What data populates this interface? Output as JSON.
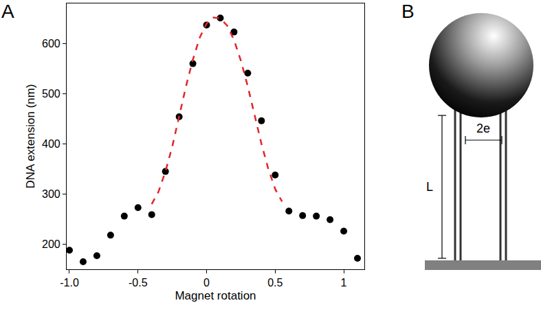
{
  "chart_data": {
    "type": "scatter",
    "x_label": "Magnet rotation",
    "y_label": "DNA extension (nm)",
    "xlim": [
      -1.02,
      1.15
    ],
    "xticks": [
      {
        "value": -1,
        "label": "-1.0"
      },
      -0.5,
      0,
      0.5,
      1
    ],
    "ylim": [
      150,
      680
    ],
    "yticks": [
      200,
      300,
      400,
      500,
      600
    ],
    "grid": false,
    "series": [
      {
        "type": "scatter",
        "color": "#000000",
        "marker": "circle",
        "x": [
          -1.0,
          -0.9,
          -0.8,
          -0.7,
          -0.6,
          -0.5,
          -0.4,
          -0.3,
          -0.2,
          -0.1,
          0,
          0.1,
          0.2,
          0.3,
          0.4,
          0.5,
          0.6,
          0.7,
          0.8,
          0.9,
          1.0,
          1.1
        ],
        "values": [
          188,
          165,
          177,
          218,
          256,
          273,
          259,
          345,
          454,
          560,
          637,
          651,
          623,
          541,
          446,
          338,
          266,
          257,
          256,
          249,
          226,
          172
        ]
      },
      {
        "type": "line",
        "color": "#e0262b",
        "line_style": "dash",
        "x": [
          -0.4,
          -0.35,
          -0.3,
          -0.25,
          -0.2,
          -0.15,
          -0.1,
          -0.05,
          0,
          0.05,
          0.1,
          0.15,
          0.2,
          0.25,
          0.3,
          0.35,
          0.4,
          0.45,
          0.5,
          0.55
        ],
        "values": [
          280,
          305,
          345,
          395,
          455,
          515,
          568,
          612,
          640,
          652,
          650,
          636,
          607,
          566,
          515,
          458,
          400,
          350,
          310,
          285
        ]
      }
    ]
  },
  "panel_labels": [
    "A",
    "B"
  ],
  "diagram": {
    "length_label": "L",
    "separation_label": "2e"
  }
}
